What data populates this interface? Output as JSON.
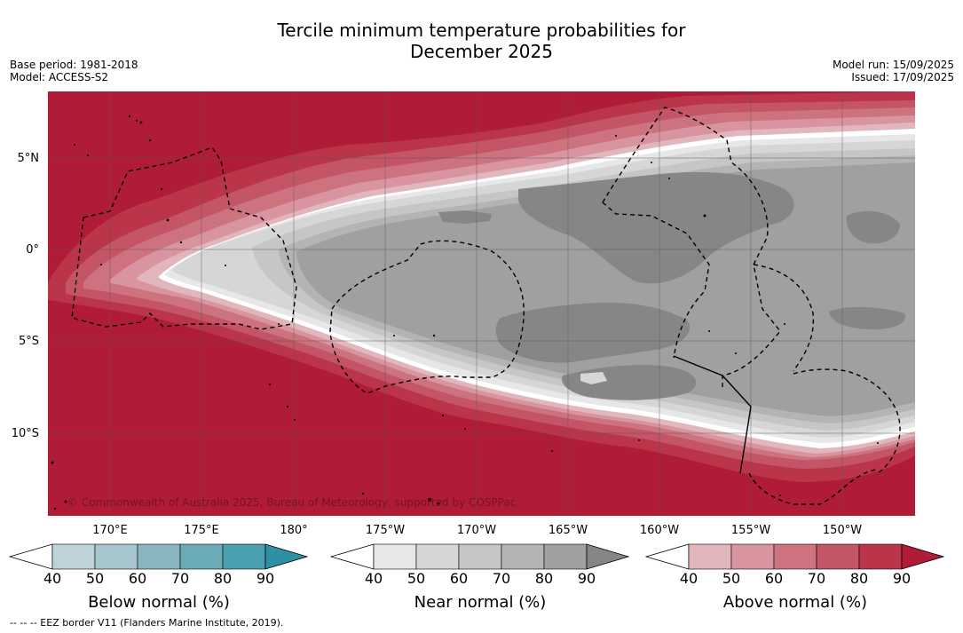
{
  "title": {
    "line1": "Tercile minimum temperature probabilities for",
    "line2": "December 2025"
  },
  "meta": {
    "base_period": "Base period: 1981-2018",
    "model": "Model: ACCESS-S2",
    "model_run": "Model run: 15/09/2025",
    "issued": "Issued: 17/09/2025"
  },
  "map": {
    "copyright": "© Commonwealth of Australia 2025, Bureau of Meteorology, supported by COSPPac",
    "lat_labels": [
      "5°N",
      "0°",
      "5°S",
      "10°S"
    ],
    "lon_labels": [
      "170°E",
      "175°E",
      "180°",
      "175°W",
      "170°W",
      "165°W",
      "160°W",
      "155°W",
      "150°W"
    ]
  },
  "legends": {
    "below": {
      "label": "Below normal (%)",
      "ticks": [
        "40",
        "50",
        "60",
        "70",
        "80",
        "90"
      ],
      "colors": [
        "#ffffff",
        "#bdd3d9",
        "#a5c6cc",
        "#89b6c0",
        "#6babb8",
        "#4aa0b0",
        "#2f8fa3"
      ]
    },
    "near": {
      "label": "Near normal (%)",
      "ticks": [
        "40",
        "50",
        "60",
        "70",
        "80",
        "90"
      ],
      "colors": [
        "#ffffff",
        "#e7e7e7",
        "#d6d6d6",
        "#c6c6c6",
        "#b4b4b4",
        "#a0a0a0",
        "#868686"
      ]
    },
    "above": {
      "label": "Above normal (%)",
      "ticks": [
        "40",
        "50",
        "60",
        "70",
        "80",
        "90"
      ],
      "colors": [
        "#ffffff",
        "#e2b6bd",
        "#d9959f",
        "#cd737f",
        "#c35566",
        "#ba3549",
        "#b01c37"
      ]
    }
  },
  "footnote": "-- -- -- EEZ border V11 (Flanders Marine Institute, 2019)."
}
